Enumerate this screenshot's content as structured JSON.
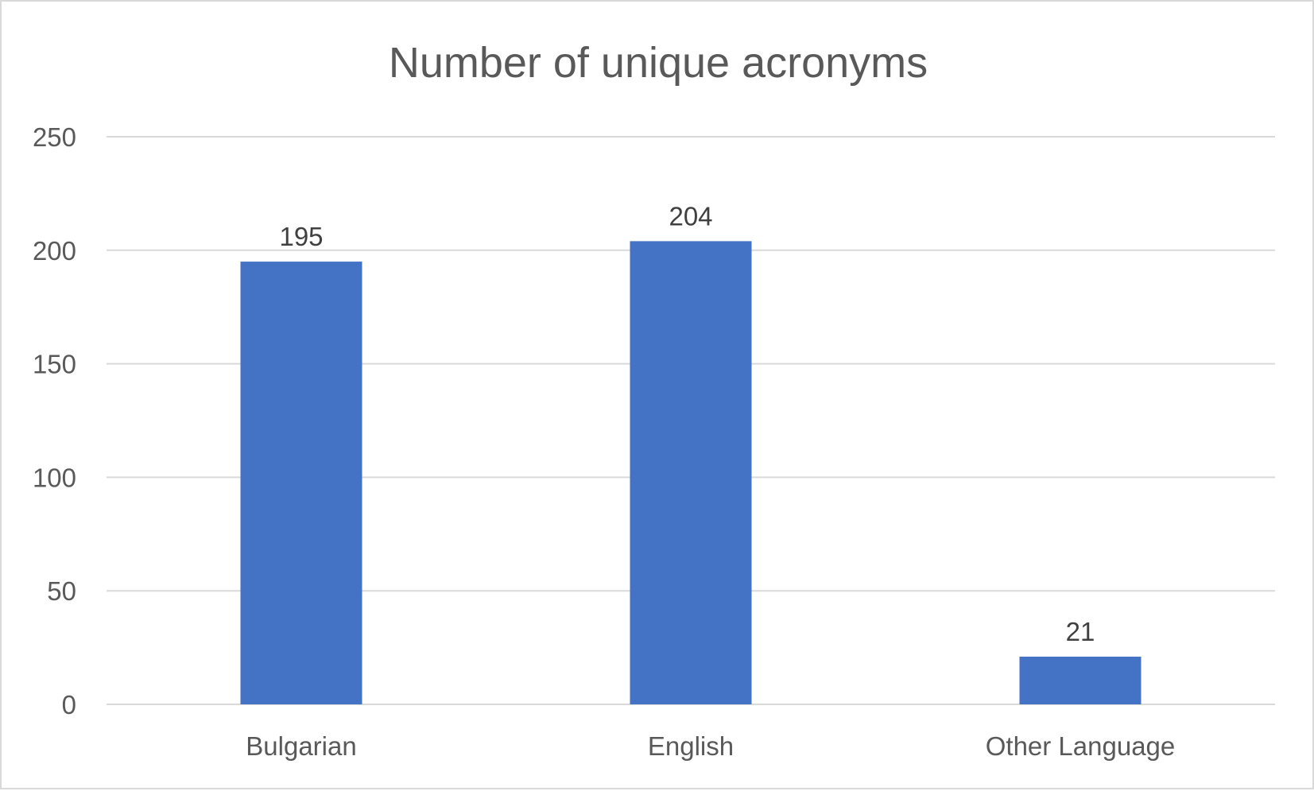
{
  "chart_data": {
    "type": "bar",
    "title": "Number of unique acronyms",
    "xlabel": "",
    "ylabel": "",
    "categories": [
      "Bulgarian",
      "English",
      "Other Language"
    ],
    "series": [
      {
        "values": [
          195,
          204,
          21
        ],
        "color": "#4472c4"
      }
    ],
    "ylim": [
      0,
      250
    ],
    "yticks": [
      "0",
      "50",
      "100",
      "150",
      "200",
      "250"
    ],
    "data_labels": [
      "195",
      "204",
      "21"
    ],
    "grid": true,
    "legend": "none"
  }
}
